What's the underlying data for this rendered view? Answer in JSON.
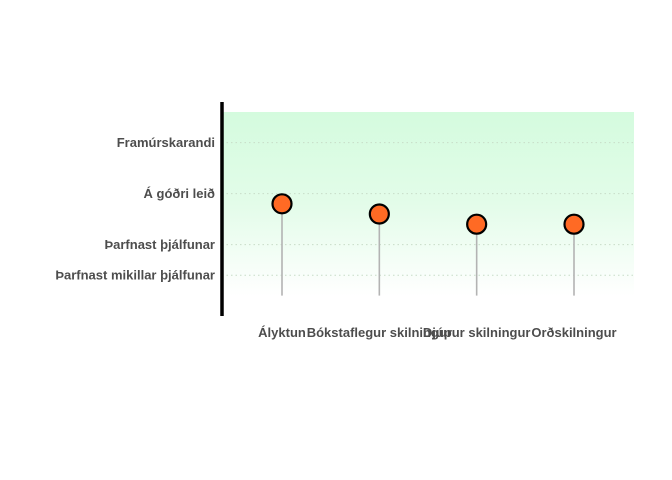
{
  "chart_data": {
    "type": "lollipop",
    "title": "",
    "xlabel": "",
    "ylabel": "",
    "categories": [
      "Ályktun",
      "Bókstaflegur skilningur",
      "Djúpur skilningur",
      "Orðskilningur"
    ],
    "values": [
      2.7,
      2.5,
      2.3,
      2.3
    ],
    "baseline": 0.9,
    "ylim": [
      0.5,
      4.5
    ],
    "y_levels": [
      {
        "label": "Þarfnast mikillar þjálfunar",
        "value": 1.3
      },
      {
        "label": "Þarfnast þjálfunar",
        "value": 1.9
      },
      {
        "label": "Á góðri leið",
        "value": 2.9
      },
      {
        "label": "Framúrskarandi",
        "value": 3.9
      }
    ],
    "grid": "horizontal-dotted",
    "background_gradient": {
      "top": "#d4fbde",
      "bottom": "#ffffff"
    },
    "colors": {
      "point_fill": "#ff6a24",
      "point_stroke": "#000000",
      "stem": "#b3b3b3",
      "axis": "#000000",
      "gridline": "#c8dcc8",
      "label": "#4d4d4d"
    }
  }
}
